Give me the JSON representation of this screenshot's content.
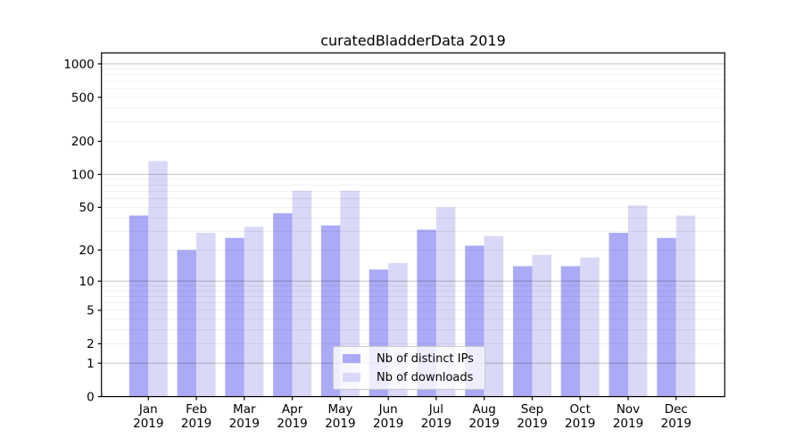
{
  "chart_data": {
    "type": "bar",
    "title": "curatedBladderData 2019",
    "categories": [
      "Jan 2019",
      "Feb 2019",
      "Mar 2019",
      "Apr 2019",
      "May 2019",
      "Jun 2019",
      "Jul 2019",
      "Aug 2019",
      "Sep 2019",
      "Oct 2019",
      "Nov 2019",
      "Dec 2019"
    ],
    "series": [
      {
        "name": "Nb of distinct IPs",
        "color": "#abaaf7",
        "values": [
          42,
          20,
          26,
          44,
          34,
          13,
          31,
          22,
          14,
          14,
          29,
          26
        ]
      },
      {
        "name": "Nb of downloads",
        "color": "#d9d8f7",
        "values": [
          132,
          29,
          33,
          71,
          71,
          15,
          50,
          27,
          18,
          17,
          52,
          42
        ]
      }
    ],
    "xlabel": "",
    "ylabel": "",
    "yscale": "log1p",
    "yticks": [
      0,
      1,
      2,
      5,
      10,
      20,
      50,
      100,
      200,
      500,
      1000
    ],
    "ylim": [
      0,
      1259
    ],
    "grid": true,
    "legend_position": "bottom-center"
  },
  "colors": {
    "background": "#ffffff",
    "bar_distinct_ips": "#abaaf7",
    "bar_downloads": "#d9d8f7",
    "grid_major": "rgba(0,0,0,0.21)",
    "grid_minor": "rgba(0,0,0,0.075)",
    "axis": "#000000",
    "tick_text": "#000000",
    "legend_border": "#c9c9c9"
  }
}
